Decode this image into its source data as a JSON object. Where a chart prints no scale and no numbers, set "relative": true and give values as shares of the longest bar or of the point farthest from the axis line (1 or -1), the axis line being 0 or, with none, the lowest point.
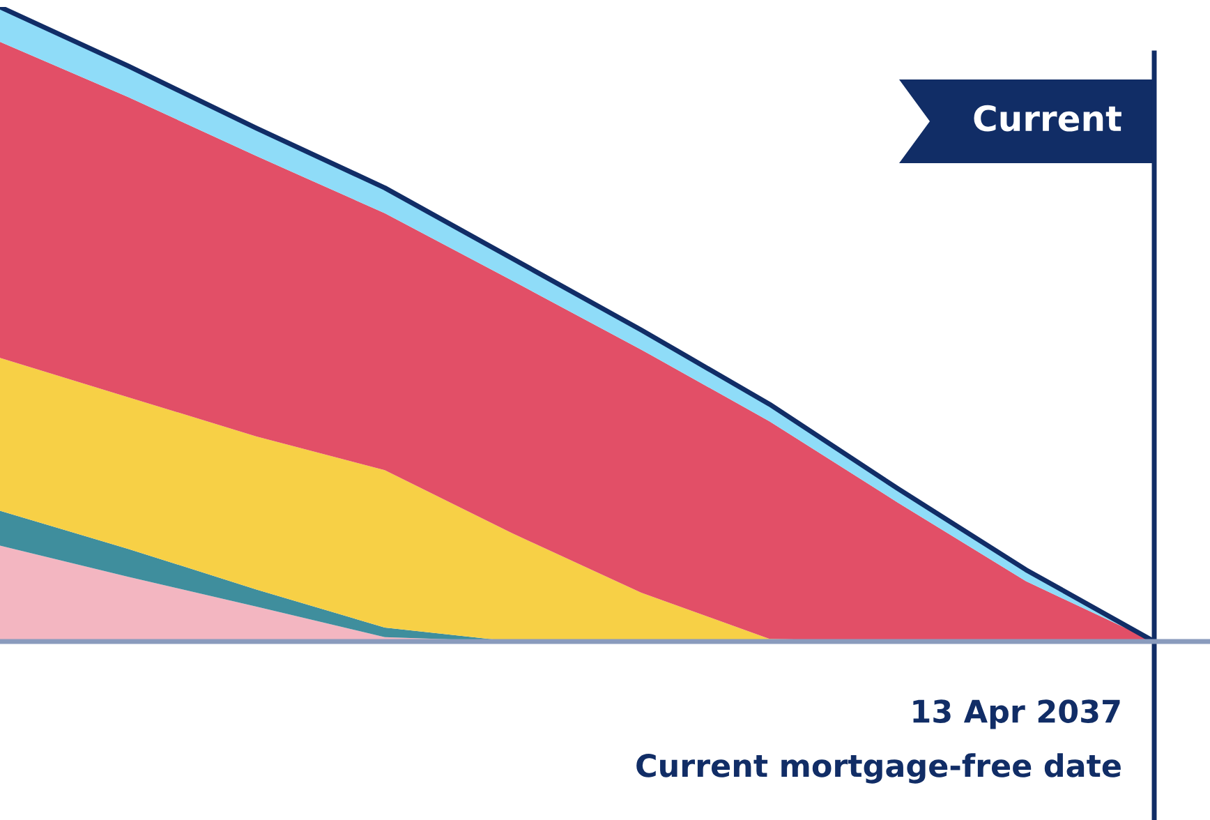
{
  "chart_data": {
    "type": "area",
    "stacked": true,
    "relative": true,
    "categories": [
      null,
      null,
      null,
      null,
      null,
      null,
      null,
      null,
      null,
      null
    ],
    "series": [
      {
        "color": "#f3b6c1",
        "values": [
          0.151,
          0.102,
          0.055,
          0.007,
          0,
          0,
          0,
          0,
          0,
          0
        ]
      },
      {
        "color": "#3f8e9d",
        "values": [
          0.055,
          0.044,
          0.027,
          0.015,
          0,
          0,
          0,
          0,
          0,
          0
        ]
      },
      {
        "color": "#f7d046",
        "values": [
          0.241,
          0.239,
          0.241,
          0.248,
          0.17,
          0.077,
          0.004,
          0,
          0,
          0
        ]
      },
      {
        "color": "#e24f67",
        "values": [
          0.498,
          0.473,
          0.442,
          0.405,
          0.398,
          0.383,
          0.343,
          0.219,
          0.095,
          0
        ]
      },
      {
        "color": "#8fdcf8",
        "values": [
          0.055,
          0.049,
          0.044,
          0.04,
          0.035,
          0.031,
          0.027,
          0.022,
          0.018,
          0
        ]
      }
    ],
    "annotations": [
      "Current",
      "13 Apr 2037",
      "Current mortgage-free date"
    ]
  }
}
